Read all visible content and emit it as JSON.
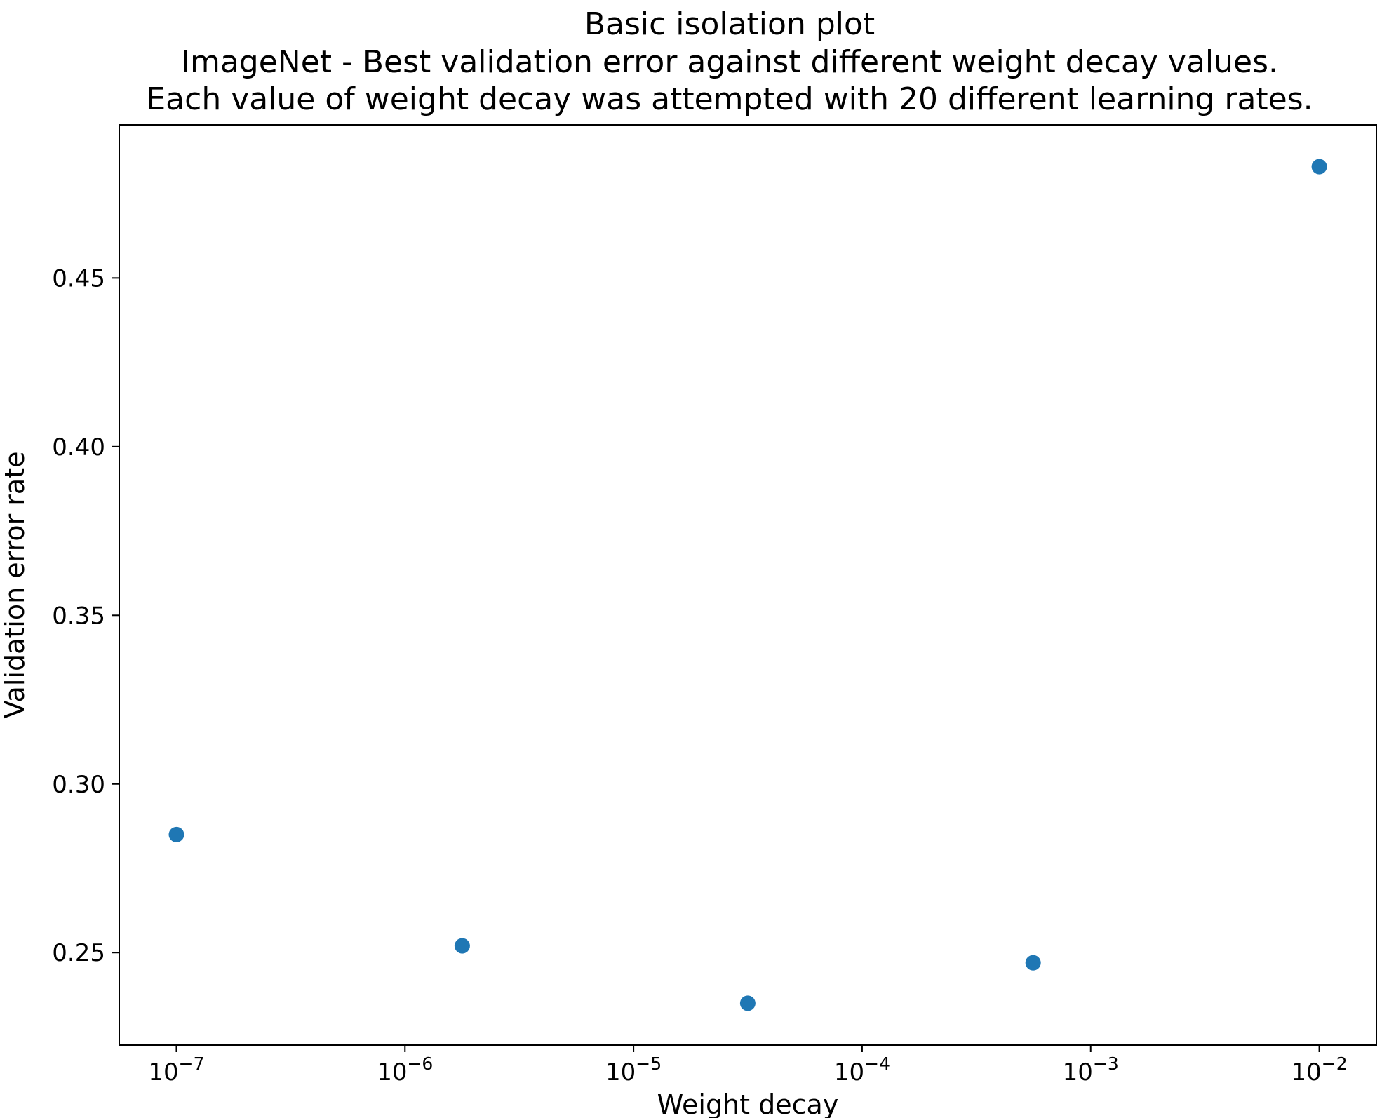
{
  "figure": {
    "title_lines": [
      "Basic isolation plot",
      "ImageNet - Best validation error against different weight decay values.",
      "Each value of weight decay was attempted with 20 different learning rates."
    ]
  },
  "chart_data": {
    "type": "scatter",
    "title": "Basic isolation plot\nImageNet - Best validation error against different weight decay values.\nEach value of weight decay was attempted with 20 different learning rates.",
    "xlabel": "Weight decay",
    "ylabel": "Validation error rate",
    "x_scale": "log",
    "y_scale": "linear",
    "x": [
      1e-07,
      1.78e-06,
      3.16e-05,
      0.00056,
      0.01
    ],
    "y": [
      0.285,
      0.252,
      0.235,
      0.247,
      0.483
    ],
    "xlim": [
      5.623e-08,
      0.01778
    ],
    "ylim": [
      0.2226,
      0.4954
    ],
    "x_tick_exponents": [
      -7,
      -6,
      -5,
      -4,
      -3,
      -2
    ],
    "y_ticks": [
      0.25,
      0.3,
      0.35,
      0.4,
      0.45
    ],
    "marker_color": "#1f77b4",
    "marker_size_px": 11,
    "grid": false,
    "legend": null
  }
}
